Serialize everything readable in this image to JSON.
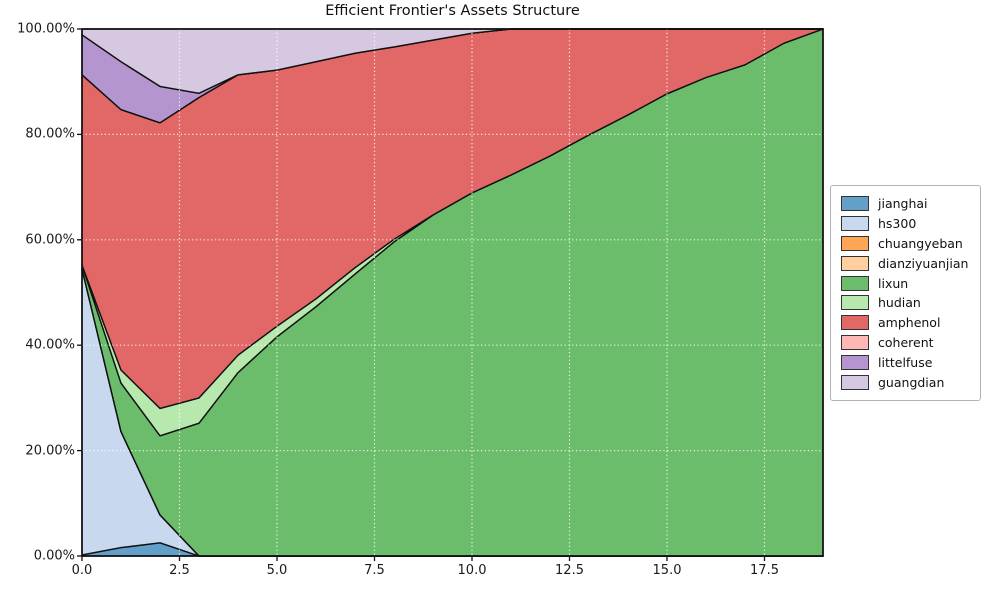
{
  "chart_data": {
    "type": "area",
    "stacked": true,
    "title": "Efficient Frontier's Assets Structure",
    "x": [
      0,
      1,
      2,
      3,
      4,
      5,
      6,
      7,
      8,
      9,
      10,
      11,
      12,
      13,
      14,
      15,
      16,
      17,
      18,
      19
    ],
    "xlim": [
      0,
      19
    ],
    "ylim": [
      0,
      100
    ],
    "y_unit": "%",
    "x_tick_labels": [
      "0.0",
      "2.5",
      "5.0",
      "7.5",
      "10.0",
      "12.5",
      "15.0",
      "17.5"
    ],
    "x_tick_values": [
      0,
      2.5,
      5,
      7.5,
      10,
      12.5,
      15,
      17.5
    ],
    "y_tick_labels": [
      "0.00%",
      "20.00%",
      "40.00%",
      "60.00%",
      "80.00%",
      "100.00%"
    ],
    "y_tick_values": [
      0,
      20,
      40,
      60,
      80,
      100
    ],
    "grid": {
      "on": true,
      "style": "dotted",
      "color": "rgba(255,255,255,0.85)",
      "x_values": [
        2.5,
        5,
        7.5,
        10,
        12.5,
        15,
        17.5
      ],
      "y_values": [
        20,
        40,
        60,
        80
      ]
    },
    "edge_color": "#111111",
    "legend_position": "center-right-outside",
    "series": [
      {
        "name": "jianghai",
        "color": "#62a0ca",
        "values": [
          0.2,
          1.6,
          2.5,
          0,
          0,
          0,
          0,
          0,
          0,
          0,
          0,
          0,
          0,
          0,
          0,
          0,
          0,
          0,
          0,
          0
        ]
      },
      {
        "name": "hs300",
        "color": "#c7d8ef",
        "values": [
          54.3,
          22.0,
          5.3,
          0,
          0,
          0,
          0,
          0,
          0,
          0,
          0,
          0,
          0,
          0,
          0,
          0,
          0,
          0,
          0,
          0
        ]
      },
      {
        "name": "chuangyeban",
        "color": "#ffa556",
        "values": [
          0,
          0,
          0,
          0,
          0,
          0,
          0,
          0,
          0,
          0,
          0,
          0,
          0,
          0,
          0,
          0,
          0,
          0,
          0,
          0
        ]
      },
      {
        "name": "dianziyuanjian",
        "color": "#ffcfa0",
        "values": [
          0,
          0,
          0,
          0,
          0,
          0,
          0,
          0,
          0,
          0,
          0,
          0,
          0,
          0,
          0,
          0,
          0,
          0,
          0,
          0
        ]
      },
      {
        "name": "lixun",
        "color": "#6bbd6b",
        "values": [
          0.7,
          9.2,
          15.0,
          25.2,
          34.8,
          41.6,
          47.3,
          53.5,
          59.6,
          64.7,
          68.9,
          72.3,
          75.9,
          79.9,
          83.7,
          87.7,
          90.8,
          93.2,
          97.3,
          100
        ]
      },
      {
        "name": "hudian",
        "color": "#b7e8ad",
        "values": [
          0,
          2.5,
          5.2,
          4.8,
          3.3,
          2.0,
          1.5,
          1.2,
          0.5,
          0,
          0,
          0,
          0,
          0,
          0,
          0,
          0,
          0,
          0,
          0
        ]
      },
      {
        "name": "amphenol",
        "color": "#e26868",
        "values": [
          36.1,
          49.4,
          54.2,
          57.0,
          53.2,
          48.6,
          45.0,
          40.7,
          36.5,
          33.2,
          30.3,
          27.7,
          24.1,
          20.1,
          16.3,
          12.3,
          9.2,
          6.8,
          2.7,
          0
        ]
      },
      {
        "name": "coherent",
        "color": "#ffb7b5",
        "values": [
          0,
          0,
          0,
          0,
          0,
          0,
          0,
          0,
          0,
          0,
          0,
          0,
          0,
          0,
          0,
          0,
          0,
          0,
          0,
          0
        ]
      },
      {
        "name": "littelfuse",
        "color": "#b495d0",
        "values": [
          7.6,
          9.1,
          6.9,
          0.8,
          0,
          0,
          0,
          0,
          0,
          0,
          0,
          0,
          0,
          0,
          0,
          0,
          0,
          0,
          0,
          0
        ]
      },
      {
        "name": "guangdian",
        "color": "#d6c8e1",
        "values": [
          1.1,
          6.2,
          10.9,
          12.2,
          8.7,
          7.8,
          6.2,
          4.6,
          3.4,
          2.1,
          0.8,
          0,
          0,
          0,
          0,
          0,
          0,
          0,
          0,
          0
        ]
      }
    ]
  }
}
